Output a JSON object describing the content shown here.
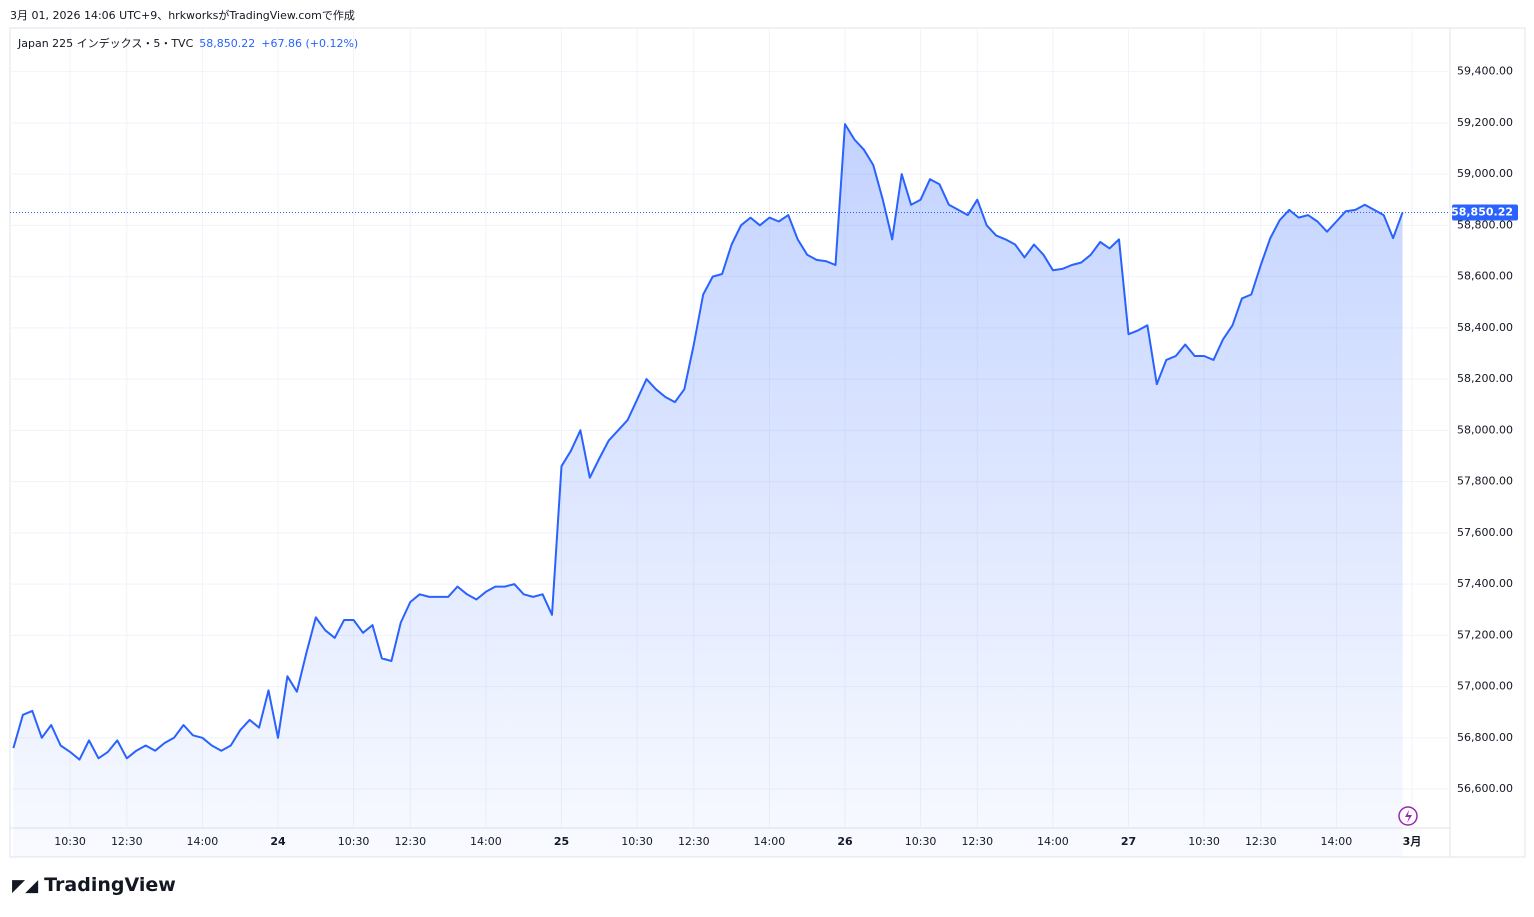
{
  "header": {
    "caption": "3月 01, 2026 14:06 UTC+9、hrkworksがTradingView.comで作成",
    "symbol": "Japan 225 インデックス・5・TVC",
    "price": "58,850.22",
    "change": "+67.86 (+0.12%)",
    "brand": "TradingView"
  },
  "chart_data": {
    "type": "area",
    "color": "#2962ff",
    "grid": true,
    "categories": [
      null,
      null,
      null,
      null,
      null,
      null,
      "10:30",
      null,
      null,
      null,
      null,
      null,
      "12:30",
      null,
      null,
      null,
      null,
      null,
      null,
      null,
      "14:00",
      null,
      null,
      null,
      null,
      null,
      null,
      null,
      "24",
      null,
      null,
      null,
      null,
      null,
      null,
      null,
      "10:30",
      null,
      null,
      null,
      null,
      null,
      "12:30",
      null,
      null,
      null,
      null,
      null,
      null,
      null,
      "14:00",
      null,
      null,
      null,
      null,
      null,
      null,
      null,
      "25",
      null,
      null,
      null,
      null,
      null,
      null,
      null,
      "10:30",
      null,
      null,
      null,
      null,
      null,
      "12:30",
      null,
      null,
      null,
      null,
      null,
      null,
      null,
      "14:00",
      null,
      null,
      null,
      null,
      null,
      null,
      null,
      "26",
      null,
      null,
      null,
      null,
      null,
      null,
      null,
      "10:30",
      null,
      null,
      null,
      null,
      null,
      "12:30",
      null,
      null,
      null,
      null,
      null,
      null,
      null,
      "14:00",
      null,
      null,
      null,
      null,
      null,
      null,
      null,
      "27",
      null,
      null,
      null,
      null,
      null,
      null,
      null,
      "10:30",
      null,
      null,
      null,
      null,
      null,
      "12:30",
      null,
      null,
      null,
      null,
      null,
      null,
      null,
      "14:00",
      null,
      null,
      null,
      null,
      null,
      null,
      null,
      "3月"
    ],
    "values": [
      56760,
      56890,
      56905,
      56800,
      56850,
      56770,
      56745,
      56715,
      56790,
      56720,
      56745,
      56790,
      56720,
      56750,
      56770,
      56750,
      56780,
      56800,
      56850,
      56810,
      56800,
      56770,
      56750,
      56770,
      56830,
      56870,
      56840,
      56985,
      56800,
      57040,
      56980,
      57130,
      57270,
      57220,
      57190,
      57260,
      57260,
      57210,
      57240,
      57110,
      57100,
      57250,
      57330,
      57360,
      57350,
      57350,
      57350,
      57390,
      57360,
      57340,
      57370,
      57390,
      57390,
      57400,
      57360,
      57350,
      57360,
      57280,
      57860,
      57920,
      58000,
      57815,
      57890,
      57960,
      58000,
      58040,
      58120,
      58200,
      58160,
      58130,
      58110,
      58160,
      58335,
      58530,
      58600,
      58610,
      58725,
      58800,
      58830,
      58800,
      58830,
      58815,
      58840,
      58745,
      58685,
      58665,
      58660,
      58645,
      59195,
      59135,
      59095,
      59035,
      58900,
      58745,
      59000,
      58880,
      58900,
      58980,
      58960,
      58880,
      58860,
      58840,
      58900,
      58800,
      58760,
      58745,
      58725,
      58675,
      58725,
      58685,
      58625,
      58630,
      58645,
      58655,
      58685,
      58735,
      58710,
      58745,
      58375,
      58390,
      58410,
      58180,
      58275,
      58290,
      58335,
      58290,
      58290,
      58275,
      58355,
      58410,
      58515,
      58530,
      58645,
      58750,
      58820,
      58860,
      58830,
      58840,
      58815,
      58775,
      58815,
      58855,
      58860,
      58880,
      58860,
      58840,
      58750,
      58850.22,
      null
    ],
    "ylim": [
      56335,
      59570
    ],
    "yticks": [
      {
        "value": 56600,
        "label": "56,600.00"
      },
      {
        "value": 56800,
        "label": "56,800.00"
      },
      {
        "value": 57000,
        "label": "57,000.00"
      },
      {
        "value": 57200,
        "label": "57,200.00"
      },
      {
        "value": 57400,
        "label": "57,400.00"
      },
      {
        "value": 57600,
        "label": "57,600.00"
      },
      {
        "value": 57800,
        "label": "57,800.00"
      },
      {
        "value": 58000,
        "label": "58,000.00"
      },
      {
        "value": 58200,
        "label": "58,200.00"
      },
      {
        "value": 58400,
        "label": "58,400.00"
      },
      {
        "value": 58600,
        "label": "58,600.00"
      },
      {
        "value": 58800,
        "label": "58,800.00"
      },
      {
        "value": 59000,
        "label": "59,000.00"
      },
      {
        "value": 59200,
        "label": "59,200.00"
      },
      {
        "value": 59400,
        "label": "59,400.00"
      }
    ],
    "last_value": {
      "value": 58850.22,
      "label": "58,850.22"
    }
  }
}
